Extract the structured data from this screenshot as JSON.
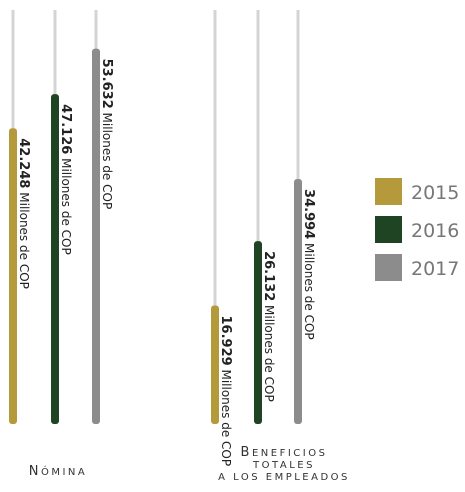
{
  "chart_data": {
    "type": "bar",
    "orientation": "vertical",
    "categories": [
      {
        "lines": [
          "Nómina"
        ]
      },
      {
        "lines": [
          "Beneficios",
          "totales",
          "a los empleados"
        ]
      }
    ],
    "series": [
      {
        "name": "2015",
        "color": "#b59a3c",
        "values": [
          42248,
          16929
        ]
      },
      {
        "name": "2016",
        "color": "#1f4424",
        "values": [
          47126,
          26132
        ]
      },
      {
        "name": "2017",
        "color": "#8c8c8c",
        "values": [
          53632,
          34994
        ]
      }
    ],
    "value_labels": [
      [
        "42.248",
        "47.126",
        "53.632"
      ],
      [
        "16.929",
        "26.132",
        "34.994"
      ]
    ],
    "unit_label": "Millones de COP",
    "legend_position": "right",
    "track_color": "#d4d4d4"
  }
}
